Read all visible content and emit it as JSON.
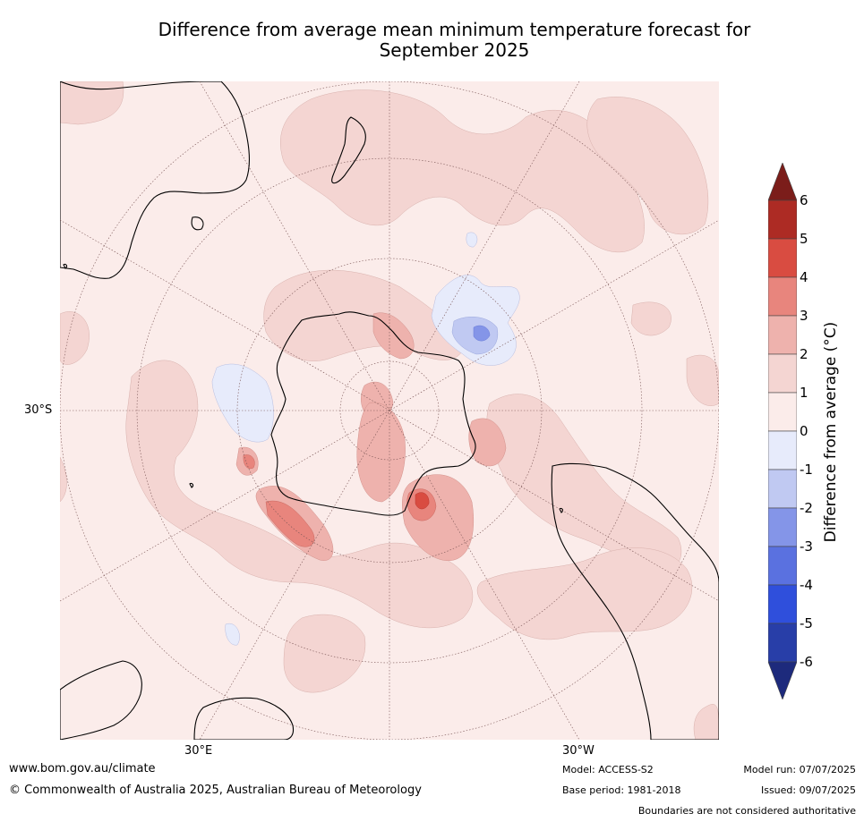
{
  "title": {
    "line1": "Difference from average mean minimum temperature forecast for",
    "line2": "September 2025"
  },
  "map": {
    "projection": "south-polar-stereographic",
    "lat_label": "30°S",
    "lon_labels": {
      "east": "30°E",
      "west": "30°W"
    },
    "ocean_color": "#fbecea"
  },
  "colorbar": {
    "label": "Difference from average (°C)",
    "ticks": [
      "6",
      "5",
      "4",
      "3",
      "2",
      "1",
      "0",
      "-1",
      "-2",
      "-3",
      "-4",
      "-5",
      "-6"
    ],
    "colors": {
      "above_max": "#7b1d1a",
      "5_to_6": "#ad2b24",
      "4_to_5": "#d94c41",
      "3_to_4": "#e8857d",
      "2_to_3": "#eeb2ad",
      "1_to_2": "#f4d5d2",
      "0_to_1": "#fbecea",
      "-1_to_0": "#e7ebfb",
      "-2_to_-1": "#c0c9f2",
      "-3_to_-2": "#8495e8",
      "-4_to_-3": "#5a71e0",
      "-5_to_-4": "#2f4fdc",
      "-6_to_-5": "#283ea8",
      "below_min": "#1d2a7c"
    }
  },
  "footer": {
    "url": "www.bom.gov.au/climate",
    "copyright": "© Commonwealth of Australia 2025, Australian Bureau of Meteorology",
    "model": "Model: ACCESS-S2",
    "base_period": "Base period: 1981-2018",
    "model_run": "Model run: 07/07/2025",
    "issued": "Issued: 09/07/2025",
    "disclaimer": "Boundaries are not considered authoritative"
  }
}
